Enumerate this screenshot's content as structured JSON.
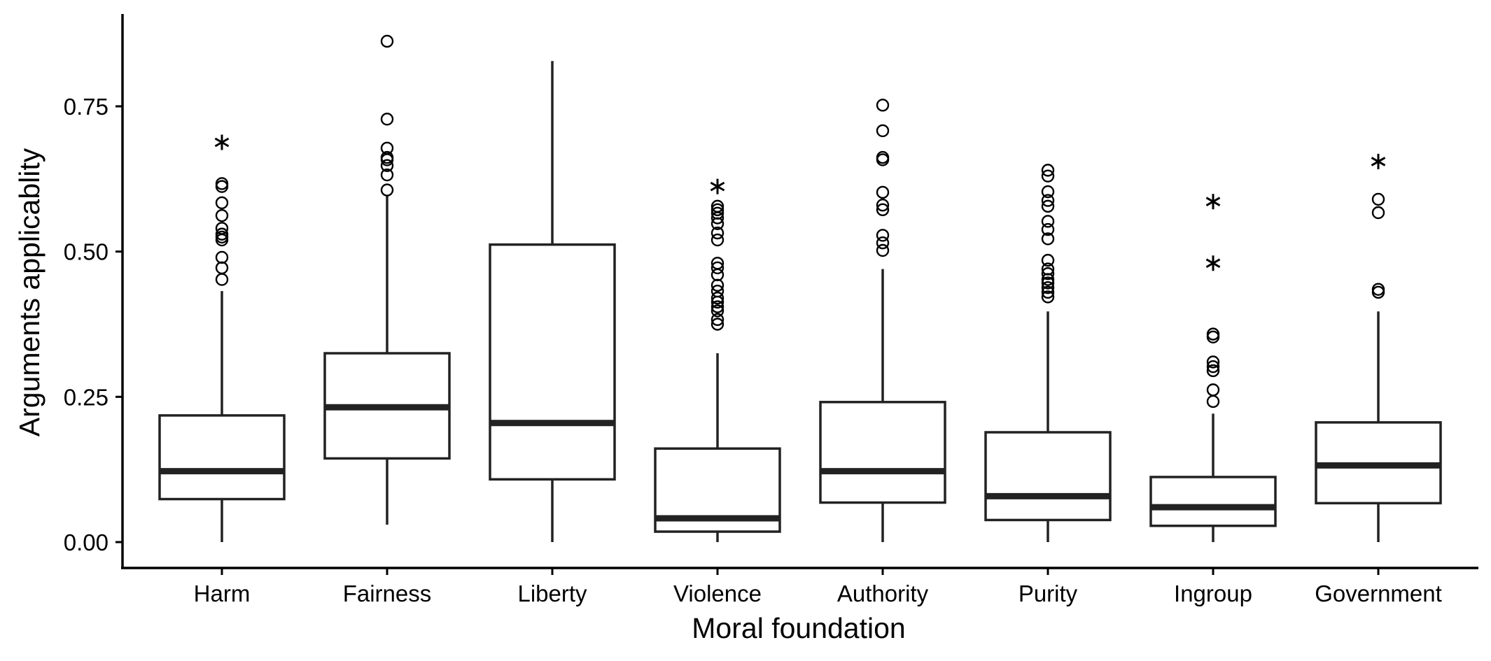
{
  "chart_data": {
    "type": "box",
    "xlabel": "Moral foundation",
    "ylabel": "Arguments applicablity",
    "ylim": [
      -0.04,
      0.92
    ],
    "yticks": [
      "0.00",
      "0.25",
      "0.50",
      "0.75"
    ],
    "ytick_values": [
      0,
      0.25,
      0.5,
      0.75
    ],
    "grid": false,
    "legend": "none",
    "categories": [
      "Harm",
      "Fairness",
      "Liberty",
      "Violence",
      "Authority",
      "Purity",
      "Ingroup",
      "Government"
    ],
    "boxes": [
      {
        "category": "Harm",
        "whisker_low": 0.0,
        "q1": 0.074,
        "median": 0.122,
        "q3": 0.218,
        "whisker_high": 0.432,
        "outliers": [
          0.452,
          0.472,
          0.49,
          0.52,
          0.525,
          0.53,
          0.54,
          0.562,
          0.584,
          0.612,
          0.617
        ],
        "extreme_outliers": [
          0.688
        ]
      },
      {
        "category": "Fairness",
        "whisker_low": 0.03,
        "q1": 0.144,
        "median": 0.232,
        "q3": 0.325,
        "whisker_high": 0.596,
        "outliers": [
          0.606,
          0.632,
          0.648,
          0.658,
          0.662,
          0.678,
          0.728,
          0.862
        ],
        "extreme_outliers": []
      },
      {
        "category": "Liberty",
        "whisker_low": 0.0,
        "q1": 0.108,
        "median": 0.205,
        "q3": 0.512,
        "whisker_high": 0.828,
        "outliers": [],
        "extreme_outliers": []
      },
      {
        "category": "Violence",
        "whisker_low": 0.0,
        "q1": 0.018,
        "median": 0.041,
        "q3": 0.161,
        "whisker_high": 0.325,
        "outliers": [
          0.375,
          0.383,
          0.398,
          0.405,
          0.413,
          0.42,
          0.432,
          0.442,
          0.46,
          0.472,
          0.48,
          0.52,
          0.532,
          0.548,
          0.558,
          0.566,
          0.572,
          0.578
        ],
        "extreme_outliers": [
          0.612
        ]
      },
      {
        "category": "Authority",
        "whisker_low": 0.0,
        "q1": 0.068,
        "median": 0.122,
        "q3": 0.241,
        "whisker_high": 0.47,
        "outliers": [
          0.502,
          0.515,
          0.528,
          0.572,
          0.58,
          0.602,
          0.658,
          0.662,
          0.708,
          0.752
        ],
        "extreme_outliers": []
      },
      {
        "category": "Purity",
        "whisker_low": 0.0,
        "q1": 0.038,
        "median": 0.079,
        "q3": 0.189,
        "whisker_high": 0.397,
        "outliers": [
          0.422,
          0.43,
          0.438,
          0.446,
          0.452,
          0.462,
          0.47,
          0.485,
          0.522,
          0.538,
          0.552,
          0.578,
          0.588,
          0.603,
          0.63,
          0.64
        ],
        "extreme_outliers": []
      },
      {
        "category": "Ingroup",
        "whisker_low": 0.0,
        "q1": 0.028,
        "median": 0.06,
        "q3": 0.112,
        "whisker_high": 0.221,
        "outliers": [
          0.242,
          0.262,
          0.295,
          0.302,
          0.31,
          0.353,
          0.358
        ],
        "extreme_outliers": [
          0.48,
          0.586
        ]
      },
      {
        "category": "Government",
        "whisker_low": 0.0,
        "q1": 0.067,
        "median": 0.132,
        "q3": 0.206,
        "whisker_high": 0.397,
        "outliers": [
          0.43,
          0.435,
          0.567,
          0.59
        ],
        "extreme_outliers": [
          0.655
        ]
      }
    ]
  }
}
